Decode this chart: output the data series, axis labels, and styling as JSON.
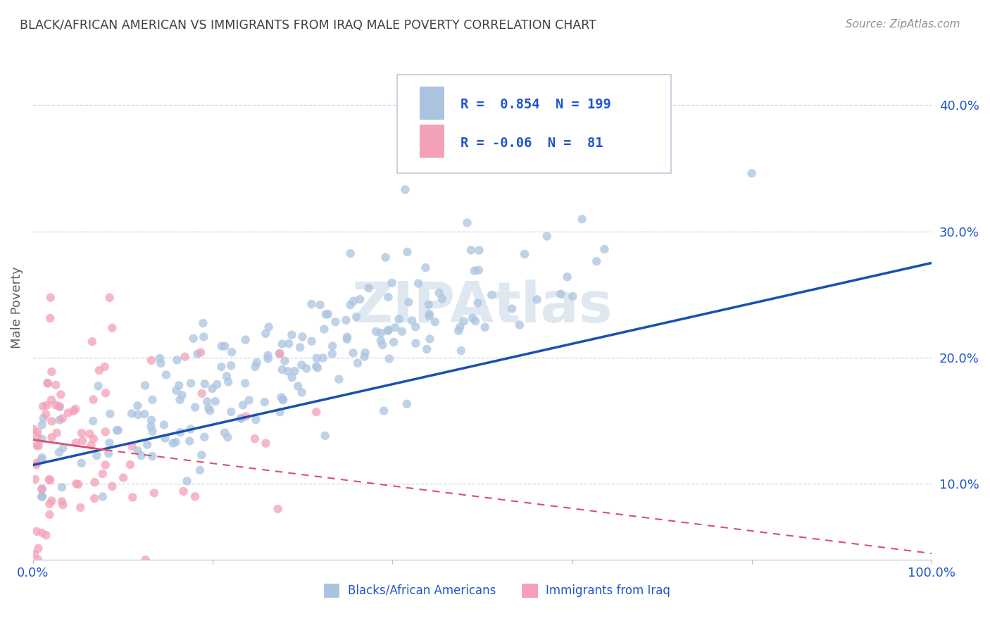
{
  "title": "BLACK/AFRICAN AMERICAN VS IMMIGRANTS FROM IRAQ MALE POVERTY CORRELATION CHART",
  "source": "Source: ZipAtlas.com",
  "ylabel": "Male Poverty",
  "xlim": [
    0,
    1
  ],
  "ylim": [
    0.04,
    0.44
  ],
  "yticks": [
    0.1,
    0.2,
    0.3,
    0.4
  ],
  "ytick_labels": [
    "10.0%",
    "20.0%",
    "30.0%",
    "40.0%"
  ],
  "xticks": [
    0.0,
    0.2,
    0.4,
    0.6,
    0.8,
    1.0
  ],
  "blue_R": 0.854,
  "blue_N": 199,
  "pink_R": -0.06,
  "pink_N": 81,
  "blue_color": "#aac4e0",
  "pink_color": "#f4a0b8",
  "blue_line_color": "#1a50b0",
  "pink_line_color": "#d85070",
  "legend_text_color": "#2255cc",
  "watermark": "ZIPAtlas",
  "background_color": "#ffffff",
  "grid_color": "#c8d4e8",
  "title_color": "#404040",
  "source_color": "#909090",
  "axis_label_color": "#606060",
  "blue_trend_x": [
    0.0,
    1.0
  ],
  "blue_trend_y": [
    0.115,
    0.275
  ],
  "pink_trend_x": [
    0.0,
    1.0
  ],
  "pink_trend_y": [
    0.135,
    0.045
  ]
}
